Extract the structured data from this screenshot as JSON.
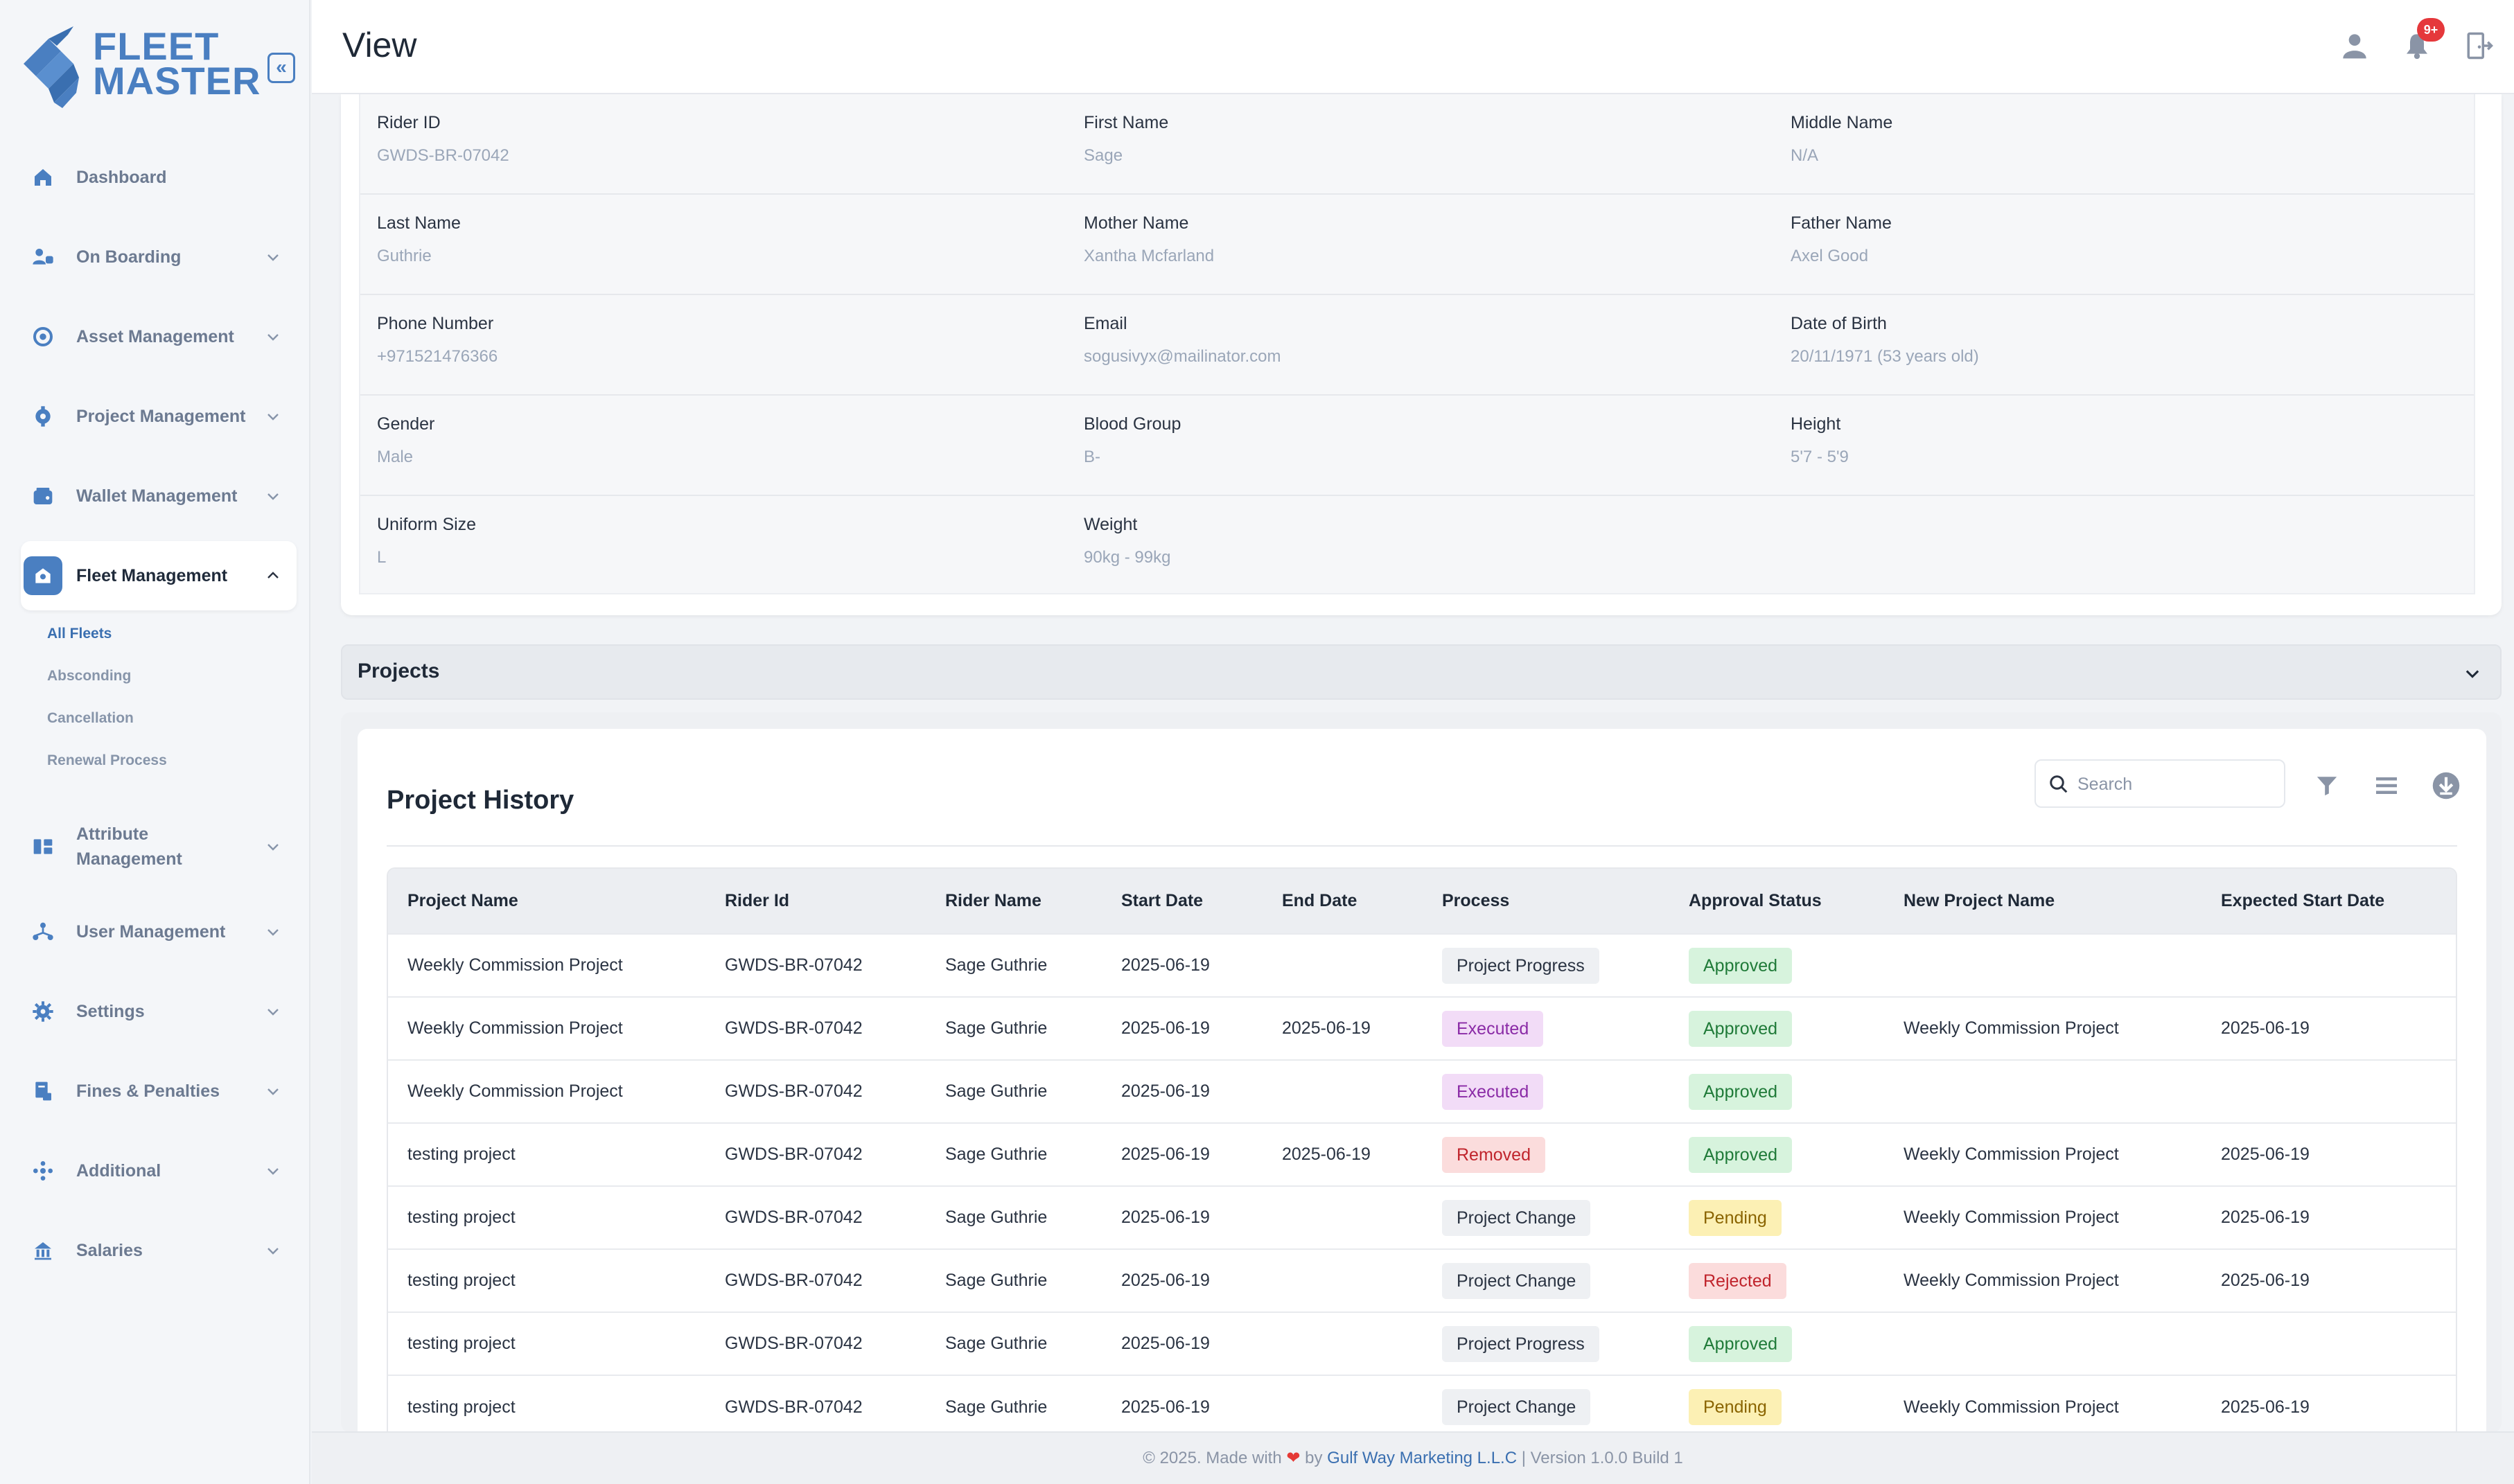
{
  "brand": {
    "line1": "FLEET",
    "line2": "MASTER"
  },
  "header": {
    "title": "View",
    "notification_count": "9+"
  },
  "sidebar": {
    "items": [
      {
        "label": "Dashboard"
      },
      {
        "label": "On Boarding"
      },
      {
        "label": "Asset Management"
      },
      {
        "label": "Project Management"
      },
      {
        "label": "Wallet Management"
      },
      {
        "label": "Fleet Management"
      },
      {
        "label": "Attribute Management"
      },
      {
        "label": "User Management"
      },
      {
        "label": "Settings"
      },
      {
        "label": "Fines & Penalties"
      },
      {
        "label": "Additional"
      },
      {
        "label": "Salaries"
      }
    ],
    "fleet_sub": [
      "All Fleets",
      "Absconding",
      "Cancellation",
      "Renewal Process"
    ]
  },
  "rider": {
    "rows": [
      [
        {
          "label": "Rider ID",
          "value": "GWDS-BR-07042"
        },
        {
          "label": "First Name",
          "value": "Sage"
        },
        {
          "label": "Middle Name",
          "value": "N/A"
        }
      ],
      [
        {
          "label": "Last Name",
          "value": "Guthrie"
        },
        {
          "label": "Mother Name",
          "value": "Xantha Mcfarland"
        },
        {
          "label": "Father Name",
          "value": "Axel Good"
        }
      ],
      [
        {
          "label": "Phone Number",
          "value": "+971521476366"
        },
        {
          "label": "Email",
          "value": "sogusivyx@mailinator.com"
        },
        {
          "label": "Date of Birth",
          "value": "20/11/1971 (53 years old)"
        }
      ],
      [
        {
          "label": "Gender",
          "value": "Male"
        },
        {
          "label": "Blood Group",
          "value": "B-"
        },
        {
          "label": "Height",
          "value": "5'7 - 5'9"
        }
      ],
      [
        {
          "label": "Uniform Size",
          "value": "L"
        },
        {
          "label": "Weight",
          "value": "90kg - 99kg"
        }
      ]
    ]
  },
  "projects": {
    "title": "Projects"
  },
  "history": {
    "title": "Project History",
    "search_placeholder": "Search",
    "columns": [
      "Project Name",
      "Rider Id",
      "Rider Name",
      "Start Date",
      "End Date",
      "Process",
      "Approval Status",
      "New Project Name",
      "Expected Start Date"
    ],
    "rows": [
      [
        "Weekly Commission Project",
        "GWDS-BR-07042",
        "Sage Guthrie",
        "2025-06-19",
        "",
        "Project Progress",
        "Approved",
        "",
        ""
      ],
      [
        "Weekly Commission Project",
        "GWDS-BR-07042",
        "Sage Guthrie",
        "2025-06-19",
        "2025-06-19",
        "Executed",
        "Approved",
        "Weekly Commission Project",
        "2025-06-19"
      ],
      [
        "Weekly Commission Project",
        "GWDS-BR-07042",
        "Sage Guthrie",
        "2025-06-19",
        "",
        "Executed",
        "Approved",
        "",
        ""
      ],
      [
        "testing project",
        "GWDS-BR-07042",
        "Sage Guthrie",
        "2025-06-19",
        "2025-06-19",
        "Removed",
        "Approved",
        "Weekly Commission Project",
        "2025-06-19"
      ],
      [
        "testing project",
        "GWDS-BR-07042",
        "Sage Guthrie",
        "2025-06-19",
        "",
        "Project Change",
        "Pending",
        "Weekly Commission Project",
        "2025-06-19"
      ],
      [
        "testing project",
        "GWDS-BR-07042",
        "Sage Guthrie",
        "2025-06-19",
        "",
        "Project Change",
        "Rejected",
        "Weekly Commission Project",
        "2025-06-19"
      ],
      [
        "testing project",
        "GWDS-BR-07042",
        "Sage Guthrie",
        "2025-06-19",
        "",
        "Project Progress",
        "Approved",
        "",
        ""
      ],
      [
        "testing project",
        "GWDS-BR-07042",
        "Sage Guthrie",
        "2025-06-19",
        "",
        "Project Change",
        "Pending",
        "Weekly Commission Project",
        "2025-06-19"
      ]
    ]
  },
  "footer": {
    "prefix": "© 2025. Made with",
    "by": "by",
    "company": "Gulf Way Marketing L.L.C",
    "suffix": "| Version 1.0.0 Build 1"
  },
  "colors": {
    "accent": "#4a7fc1",
    "approved": "#1f7a38",
    "pending": "#8a6400",
    "rejected": "#c0242c"
  }
}
